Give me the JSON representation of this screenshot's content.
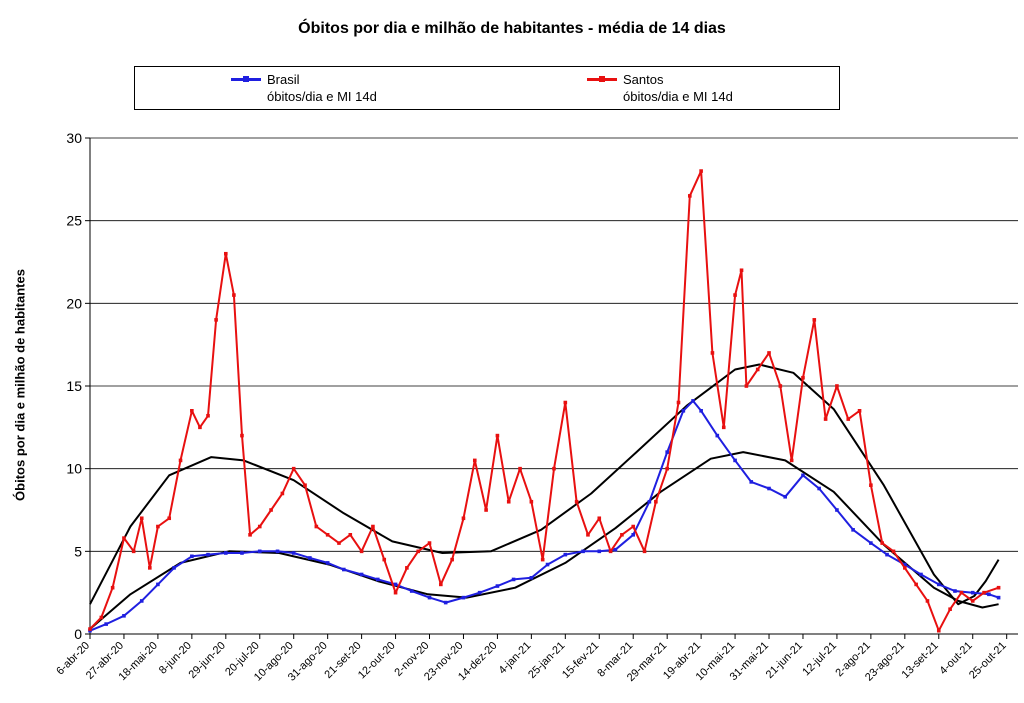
{
  "chart_data": {
    "type": "line",
    "title": "Óbitos por dia e milhão de habitantes - média de 14 dias",
    "ylabel": "Óbitos por dia e milhão de habitantes",
    "xlabel": "",
    "ylim": [
      0,
      30
    ],
    "yticks": [
      0,
      5,
      10,
      15,
      20,
      25,
      30
    ],
    "xlim": [
      "2020-04-06",
      "2021-11-01"
    ],
    "xticks": [
      {
        "date": "2020-04-06",
        "label": "6-abr-20"
      },
      {
        "date": "2020-04-27",
        "label": "27-abr-20"
      },
      {
        "date": "2020-05-18",
        "label": "18-mai-20"
      },
      {
        "date": "2020-06-08",
        "label": "8-jun-20"
      },
      {
        "date": "2020-06-29",
        "label": "29-jun-20"
      },
      {
        "date": "2020-07-20",
        "label": "20-jul-20"
      },
      {
        "date": "2020-08-10",
        "label": "10-ago-20"
      },
      {
        "date": "2020-08-31",
        "label": "31-ago-20"
      },
      {
        "date": "2020-09-21",
        "label": "21-set-20"
      },
      {
        "date": "2020-10-12",
        "label": "12-out-20"
      },
      {
        "date": "2020-11-02",
        "label": "2-nov-20"
      },
      {
        "date": "2020-11-23",
        "label": "23-nov-20"
      },
      {
        "date": "2020-12-14",
        "label": "14-dez-20"
      },
      {
        "date": "2021-01-04",
        "label": "4-jan-21"
      },
      {
        "date": "2021-01-25",
        "label": "25-jan-21"
      },
      {
        "date": "2021-02-15",
        "label": "15-fev-21"
      },
      {
        "date": "2021-03-08",
        "label": "8-mar-21"
      },
      {
        "date": "2021-03-29",
        "label": "29-mar-21"
      },
      {
        "date": "2021-04-19",
        "label": "19-abr-21"
      },
      {
        "date": "2021-05-10",
        "label": "10-mai-21"
      },
      {
        "date": "2021-05-31",
        "label": "31-mai-21"
      },
      {
        "date": "2021-06-21",
        "label": "21-jun-21"
      },
      {
        "date": "2021-07-12",
        "label": "12-jul-21"
      },
      {
        "date": "2021-08-02",
        "label": "2-ago-21"
      },
      {
        "date": "2021-08-23",
        "label": "23-ago-21"
      },
      {
        "date": "2021-09-13",
        "label": "13-set-21"
      },
      {
        "date": "2021-10-04",
        "label": "4-out-21"
      },
      {
        "date": "2021-10-25",
        "label": "25-out-21"
      }
    ],
    "grid": "horizontal",
    "legend_position": "top",
    "series": [
      {
        "name": "Brasil",
        "name_line2": "óbitos/dia e MI 14d",
        "color": "#1f1fe0",
        "points": [
          [
            "2020-04-06",
            0.2
          ],
          [
            "2020-04-16",
            0.6
          ],
          [
            "2020-04-27",
            1.1
          ],
          [
            "2020-05-08",
            2.0
          ],
          [
            "2020-05-18",
            3.0
          ],
          [
            "2020-05-28",
            4.0
          ],
          [
            "2020-06-08",
            4.7
          ],
          [
            "2020-06-18",
            4.8
          ],
          [
            "2020-06-29",
            4.9
          ],
          [
            "2020-07-09",
            4.9
          ],
          [
            "2020-07-20",
            5.0
          ],
          [
            "2020-07-31",
            5.0
          ],
          [
            "2020-08-10",
            4.9
          ],
          [
            "2020-08-20",
            4.6
          ],
          [
            "2020-08-31",
            4.3
          ],
          [
            "2020-09-10",
            3.9
          ],
          [
            "2020-09-21",
            3.6
          ],
          [
            "2020-10-01",
            3.3
          ],
          [
            "2020-10-12",
            3.0
          ],
          [
            "2020-10-22",
            2.6
          ],
          [
            "2020-11-02",
            2.2
          ],
          [
            "2020-11-12",
            1.9
          ],
          [
            "2020-11-23",
            2.2
          ],
          [
            "2020-12-03",
            2.5
          ],
          [
            "2020-12-14",
            2.9
          ],
          [
            "2020-12-24",
            3.3
          ],
          [
            "2021-01-04",
            3.4
          ],
          [
            "2021-01-14",
            4.2
          ],
          [
            "2021-01-25",
            4.8
          ],
          [
            "2021-02-05",
            5.0
          ],
          [
            "2021-02-15",
            5.0
          ],
          [
            "2021-02-25",
            5.1
          ],
          [
            "2021-03-08",
            6.0
          ],
          [
            "2021-03-18",
            8.0
          ],
          [
            "2021-03-29",
            11.0
          ],
          [
            "2021-04-08",
            13.5
          ],
          [
            "2021-04-14",
            14.1
          ],
          [
            "2021-04-19",
            13.5
          ],
          [
            "2021-04-29",
            12.0
          ],
          [
            "2021-05-10",
            10.5
          ],
          [
            "2021-05-20",
            9.2
          ],
          [
            "2021-05-31",
            8.8
          ],
          [
            "2021-06-10",
            8.3
          ],
          [
            "2021-06-21",
            9.6
          ],
          [
            "2021-07-01",
            8.8
          ],
          [
            "2021-07-12",
            7.5
          ],
          [
            "2021-07-22",
            6.3
          ],
          [
            "2021-08-02",
            5.5
          ],
          [
            "2021-08-12",
            4.8
          ],
          [
            "2021-08-23",
            4.2
          ],
          [
            "2021-09-02",
            3.6
          ],
          [
            "2021-09-13",
            3.0
          ],
          [
            "2021-09-23",
            2.6
          ],
          [
            "2021-10-04",
            2.5
          ],
          [
            "2021-10-14",
            2.4
          ],
          [
            "2021-10-20",
            2.2
          ]
        ]
      },
      {
        "name": "Santos",
        "name_line2": "óbitos/dia e MI 14d",
        "color": "#e81010",
        "points": [
          [
            "2020-04-06",
            0.3
          ],
          [
            "2020-04-13",
            1.0
          ],
          [
            "2020-04-20",
            2.8
          ],
          [
            "2020-04-27",
            5.8
          ],
          [
            "2020-05-03",
            5.0
          ],
          [
            "2020-05-08",
            7.0
          ],
          [
            "2020-05-13",
            4.0
          ],
          [
            "2020-05-18",
            6.5
          ],
          [
            "2020-05-25",
            7.0
          ],
          [
            "2020-06-01",
            10.5
          ],
          [
            "2020-06-08",
            13.5
          ],
          [
            "2020-06-13",
            12.5
          ],
          [
            "2020-06-18",
            13.2
          ],
          [
            "2020-06-23",
            19.0
          ],
          [
            "2020-06-29",
            23.0
          ],
          [
            "2020-07-04",
            20.5
          ],
          [
            "2020-07-09",
            12.0
          ],
          [
            "2020-07-14",
            6.0
          ],
          [
            "2020-07-20",
            6.5
          ],
          [
            "2020-07-27",
            7.5
          ],
          [
            "2020-08-03",
            8.5
          ],
          [
            "2020-08-10",
            10.0
          ],
          [
            "2020-08-17",
            9.0
          ],
          [
            "2020-08-24",
            6.5
          ],
          [
            "2020-08-31",
            6.0
          ],
          [
            "2020-09-07",
            5.5
          ],
          [
            "2020-09-14",
            6.0
          ],
          [
            "2020-09-21",
            5.0
          ],
          [
            "2020-09-28",
            6.5
          ],
          [
            "2020-10-05",
            4.5
          ],
          [
            "2020-10-12",
            2.5
          ],
          [
            "2020-10-19",
            4.0
          ],
          [
            "2020-10-26",
            5.0
          ],
          [
            "2020-11-02",
            5.5
          ],
          [
            "2020-11-09",
            3.0
          ],
          [
            "2020-11-16",
            4.5
          ],
          [
            "2020-11-23",
            7.0
          ],
          [
            "2020-11-30",
            10.5
          ],
          [
            "2020-12-07",
            7.5
          ],
          [
            "2020-12-14",
            12.0
          ],
          [
            "2020-12-21",
            8.0
          ],
          [
            "2020-12-28",
            10.0
          ],
          [
            "2021-01-04",
            8.0
          ],
          [
            "2021-01-11",
            4.5
          ],
          [
            "2021-01-18",
            10.0
          ],
          [
            "2021-01-25",
            14.0
          ],
          [
            "2021-02-01",
            8.0
          ],
          [
            "2021-02-08",
            6.0
          ],
          [
            "2021-02-15",
            7.0
          ],
          [
            "2021-02-22",
            5.0
          ],
          [
            "2021-03-01",
            6.0
          ],
          [
            "2021-03-08",
            6.5
          ],
          [
            "2021-03-15",
            5.0
          ],
          [
            "2021-03-22",
            8.0
          ],
          [
            "2021-03-29",
            10.0
          ],
          [
            "2021-04-05",
            14.0
          ],
          [
            "2021-04-12",
            26.5
          ],
          [
            "2021-04-19",
            28.0
          ],
          [
            "2021-04-26",
            17.0
          ],
          [
            "2021-05-03",
            12.5
          ],
          [
            "2021-05-10",
            20.5
          ],
          [
            "2021-05-14",
            22.0
          ],
          [
            "2021-05-17",
            15.0
          ],
          [
            "2021-05-24",
            16.0
          ],
          [
            "2021-05-31",
            17.0
          ],
          [
            "2021-06-07",
            15.0
          ],
          [
            "2021-06-14",
            10.5
          ],
          [
            "2021-06-21",
            15.5
          ],
          [
            "2021-06-28",
            19.0
          ],
          [
            "2021-07-05",
            13.0
          ],
          [
            "2021-07-12",
            15.0
          ],
          [
            "2021-07-19",
            13.0
          ],
          [
            "2021-07-26",
            13.5
          ],
          [
            "2021-08-02",
            9.0
          ],
          [
            "2021-08-09",
            5.5
          ],
          [
            "2021-08-16",
            5.0
          ],
          [
            "2021-08-23",
            4.0
          ],
          [
            "2021-08-30",
            3.0
          ],
          [
            "2021-09-06",
            2.0
          ],
          [
            "2021-09-13",
            0.2
          ],
          [
            "2021-09-20",
            1.5
          ],
          [
            "2021-09-27",
            2.5
          ],
          [
            "2021-10-04",
            2.0
          ],
          [
            "2021-10-11",
            2.5
          ],
          [
            "2021-10-20",
            2.8
          ]
        ]
      }
    ],
    "trendlines": [
      {
        "color": "#000000",
        "points": [
          [
            "2020-04-06",
            1.8
          ],
          [
            "2020-05-01",
            6.5
          ],
          [
            "2020-05-25",
            9.6
          ],
          [
            "2020-06-20",
            10.7
          ],
          [
            "2020-07-10",
            10.5
          ],
          [
            "2020-08-10",
            9.3
          ],
          [
            "2020-09-10",
            7.3
          ],
          [
            "2020-10-10",
            5.6
          ],
          [
            "2020-11-10",
            4.9
          ],
          [
            "2020-12-10",
            5.0
          ],
          [
            "2021-01-10",
            6.3
          ],
          [
            "2021-02-10",
            8.5
          ],
          [
            "2021-03-10",
            11.0
          ],
          [
            "2021-04-10",
            13.8
          ],
          [
            "2021-05-10",
            16.0
          ],
          [
            "2021-05-25",
            16.3
          ],
          [
            "2021-06-15",
            15.8
          ],
          [
            "2021-07-10",
            13.6
          ],
          [
            "2021-08-10",
            9.0
          ],
          [
            "2021-09-10",
            3.6
          ],
          [
            "2021-09-25",
            1.8
          ],
          [
            "2021-10-05",
            2.3
          ],
          [
            "2021-10-12",
            3.2
          ],
          [
            "2021-10-20",
            4.5
          ]
        ]
      },
      {
        "color": "#000000",
        "points": [
          [
            "2020-04-06",
            0.3
          ],
          [
            "2020-05-01",
            2.4
          ],
          [
            "2020-06-01",
            4.3
          ],
          [
            "2020-07-01",
            5.0
          ],
          [
            "2020-08-01",
            4.9
          ],
          [
            "2020-09-01",
            4.2
          ],
          [
            "2020-10-01",
            3.2
          ],
          [
            "2020-11-01",
            2.4
          ],
          [
            "2020-11-25",
            2.2
          ],
          [
            "2020-12-25",
            2.8
          ],
          [
            "2021-01-25",
            4.3
          ],
          [
            "2021-02-25",
            6.4
          ],
          [
            "2021-03-25",
            8.6
          ],
          [
            "2021-04-25",
            10.6
          ],
          [
            "2021-05-15",
            11.0
          ],
          [
            "2021-06-10",
            10.5
          ],
          [
            "2021-07-10",
            8.6
          ],
          [
            "2021-08-10",
            5.4
          ],
          [
            "2021-09-10",
            2.8
          ],
          [
            "2021-09-25",
            2.0
          ],
          [
            "2021-10-10",
            1.6
          ],
          [
            "2021-10-20",
            1.8
          ]
        ]
      }
    ]
  }
}
